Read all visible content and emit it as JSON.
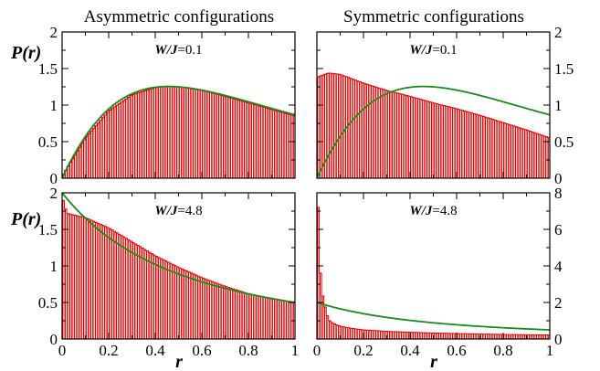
{
  "figure": {
    "col_titles": [
      "Asymmetric configurations",
      "Symmetric configurations"
    ],
    "ylabel": "P(r)",
    "xlabel": "r",
    "colors": {
      "histogram": "#e00000",
      "curve": "#1a8a1a",
      "axis": "#000000"
    }
  },
  "chart_data": [
    {
      "type": "bar",
      "panel": "top-left",
      "annotation": {
        "italic": "W/J",
        "rest": "=0.1"
      },
      "xlim": [
        0,
        1
      ],
      "ylim": [
        0,
        2
      ],
      "xticks": [],
      "yticks": [
        0,
        0.5,
        1,
        1.5,
        2
      ],
      "ytick_labels": [
        "0",
        "0.5",
        "1",
        "1.5",
        "2"
      ],
      "yaxis_side": "left",
      "histogram": {
        "x": [
          0,
          0.1,
          0.2,
          0.3,
          0.4,
          0.45,
          0.5,
          0.6,
          0.7,
          0.8,
          0.9,
          1.0
        ],
        "y": [
          0.03,
          0.55,
          0.92,
          1.14,
          1.24,
          1.26,
          1.25,
          1.2,
          1.12,
          1.03,
          0.94,
          0.85
        ]
      },
      "curve": {
        "type": "goe",
        "formula": "P(r) = 27/4 (r + r^2) / (1 + r + r^2)^(5/2)"
      }
    },
    {
      "type": "bar",
      "panel": "top-right",
      "annotation": {
        "italic": "W/J",
        "rest": "=0.1"
      },
      "xlim": [
        0,
        1
      ],
      "ylim": [
        0,
        2
      ],
      "xticks": [],
      "yticks": [
        0,
        0.5,
        1,
        1.5,
        2
      ],
      "ytick_labels": [
        "0",
        "0.5",
        "1",
        "1.5",
        "2"
      ],
      "yaxis_side": "right",
      "histogram": {
        "x": [
          0,
          0.05,
          0.1,
          0.2,
          0.3,
          0.4,
          0.5,
          0.6,
          0.7,
          0.8,
          0.9,
          1.0
        ],
        "y": [
          1.38,
          1.44,
          1.42,
          1.3,
          1.2,
          1.12,
          1.03,
          0.95,
          0.86,
          0.76,
          0.66,
          0.55
        ]
      },
      "curve": {
        "type": "goe",
        "formula": "P(r) = 27/4 (r + r^2) / (1 + r + r^2)^(5/2)"
      }
    },
    {
      "type": "bar",
      "panel": "bottom-left",
      "annotation": {
        "italic": "W/J",
        "rest": "=4.8"
      },
      "xlim": [
        0,
        1
      ],
      "ylim": [
        0,
        2
      ],
      "xticks": [
        0,
        0.2,
        0.4,
        0.6,
        0.8,
        1
      ],
      "xtick_labels": [
        "0",
        "0.2",
        "0.4",
        "0.6",
        "0.8",
        "1"
      ],
      "yticks": [
        0,
        0.5,
        1,
        1.5,
        2
      ],
      "ytick_labels": [
        "0",
        "0.5",
        "1",
        "1.5",
        "2"
      ],
      "yaxis_side": "left",
      "histogram": {
        "x": [
          0,
          0.02,
          0.1,
          0.2,
          0.3,
          0.4,
          0.5,
          0.6,
          0.7,
          0.8,
          0.9,
          1.0
        ],
        "y": [
          1.95,
          1.72,
          1.66,
          1.52,
          1.33,
          1.14,
          0.98,
          0.84,
          0.72,
          0.62,
          0.55,
          0.5
        ]
      },
      "curve": {
        "type": "poisson",
        "formula": "P(r) = 2 / (1 + r)^2"
      }
    },
    {
      "type": "bar",
      "panel": "bottom-right",
      "annotation": {
        "italic": "W/J",
        "rest": "=4.8"
      },
      "xlim": [
        0,
        1
      ],
      "ylim": [
        0,
        8
      ],
      "xticks": [
        0,
        0.2,
        0.4,
        0.6,
        0.8,
        1
      ],
      "xtick_labels": [
        "0",
        "0.2",
        "0.4",
        "0.6",
        "0.8",
        "1"
      ],
      "yticks": [
        0,
        2,
        4,
        6,
        8
      ],
      "ytick_labels": [
        "0",
        "2",
        "4",
        "6",
        "8"
      ],
      "yaxis_side": "right",
      "histogram": {
        "x": [
          0,
          0.005,
          0.01,
          0.015,
          0.02,
          0.03,
          0.04,
          0.05,
          0.07,
          0.1,
          0.15,
          0.2,
          0.3,
          0.4,
          0.5,
          0.6,
          0.8,
          1.0
        ],
        "y": [
          7.8,
          7.2,
          5.0,
          3.6,
          2.7,
          2.0,
          1.5,
          1.05,
          0.85,
          0.7,
          0.58,
          0.5,
          0.42,
          0.37,
          0.33,
          0.3,
          0.25,
          0.22
        ]
      },
      "curve": {
        "type": "poisson",
        "formula": "P(r) = 2 / (1 + r)^2"
      }
    }
  ]
}
